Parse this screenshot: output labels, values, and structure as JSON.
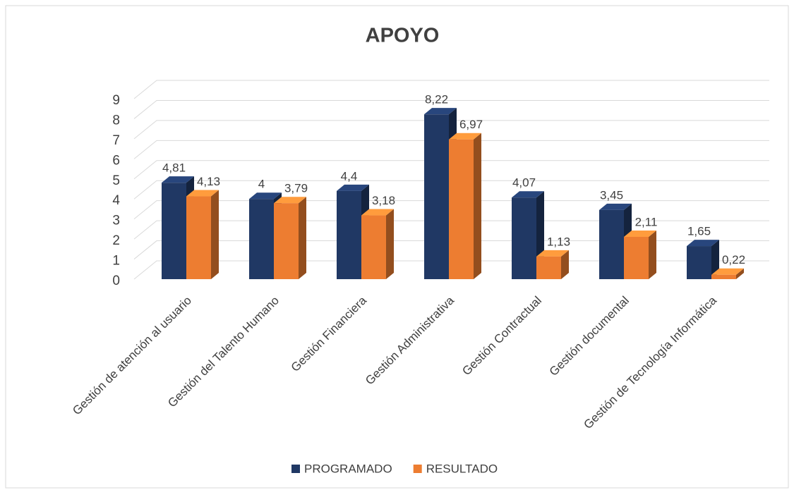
{
  "chart_data": {
    "type": "bar3d",
    "title": "APOYO",
    "categories": [
      "Gestión de atención al usuario",
      "Gestión del Talento Humano",
      "Gestión Financiera",
      "Gestión Administrativa",
      "Gestión Contractual",
      "Gestión documental",
      "Gestión de Tecnología Informática"
    ],
    "series": [
      {
        "name": "PROGRAMADO",
        "color": "#203864",
        "values": [
          4.81,
          4,
          4.4,
          8.22,
          4.07,
          3.45,
          1.65
        ],
        "value_labels": [
          "4,81",
          "4",
          "4,4",
          "8,22",
          "4,07",
          "3,45",
          "1,65"
        ]
      },
      {
        "name": "RESULTADO",
        "color": "#ed7d31",
        "values": [
          4.13,
          3.79,
          3.18,
          6.97,
          1.13,
          2.11,
          0.22
        ],
        "value_labels": [
          "4,13",
          "3,79",
          "3,18",
          "6,97",
          "1,13",
          "2,11",
          "0,22"
        ]
      }
    ],
    "ylim": [
      0,
      9
    ],
    "yticks": [
      0,
      1,
      2,
      3,
      4,
      5,
      6,
      7,
      8,
      9
    ],
    "grid": true,
    "legend": "bottom"
  }
}
